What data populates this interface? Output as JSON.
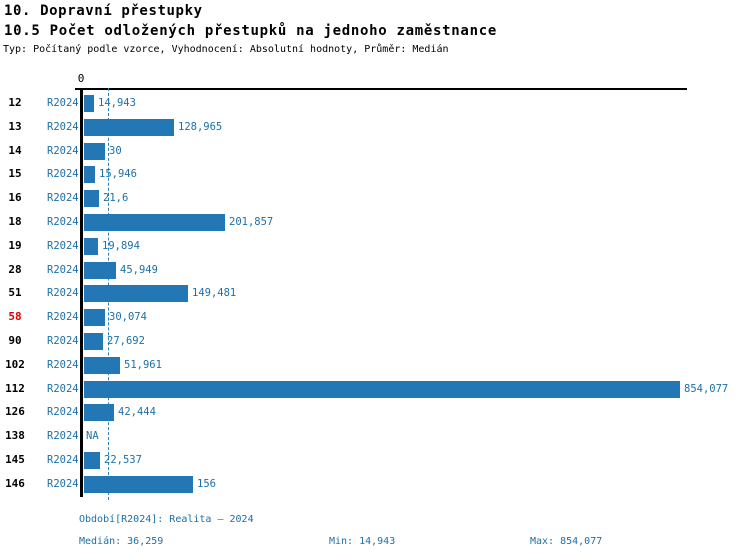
{
  "header": {
    "title_line1": "10. Dopravní přestupky",
    "title_line2": "10.5 Počet odložených přestupků na jednoho zaměstnance",
    "meta_line": "Typ: Počítaný podle vzorce, Vyhodnocení: Absolutní hodnoty, Průměr: Medián"
  },
  "axis": {
    "zero_label": "0"
  },
  "colors": {
    "bar": "#2277b4",
    "blue_text": "#1d6fa8",
    "highlight_red": "#e00000",
    "axis_black": "#000000",
    "median_line": "#2c7fb8"
  },
  "chart_data": {
    "type": "bar",
    "orientation": "horizontal",
    "title": "10.5 Počet odložených přestupků na jednoho zaměstnance",
    "categories": [
      "12",
      "13",
      "14",
      "15",
      "16",
      "18",
      "19",
      "28",
      "51",
      "58",
      "90",
      "102",
      "112",
      "126",
      "138",
      "145",
      "146"
    ],
    "period_label": "R2024",
    "series": [
      {
        "name": "R2024",
        "values": [
          14.943,
          128.965,
          30,
          15.946,
          21.6,
          201.857,
          19.894,
          45.949,
          149.481,
          30.074,
          27.692,
          51.961,
          854.077,
          42.444,
          null,
          22.537,
          156
        ]
      }
    ],
    "value_labels": [
      "14,943",
      "128,965",
      "30",
      "15,946",
      "21,6",
      "201,857",
      "19,894",
      "45,949",
      "149,481",
      "30,074",
      "27,692",
      "51,961",
      "854,077",
      "42,444",
      "NA",
      "22,537",
      "156"
    ],
    "highlighted_category": "58",
    "median": 36.259,
    "xlim": [
      0,
      854.077
    ],
    "grid": false,
    "median_line": "dashed-vertical"
  },
  "footer": {
    "period_line": "Období[R2024]: Realita – 2024",
    "median_label": "Medián: 36,259",
    "min_label": "Min: 14,943",
    "max_label": "Max: 854,077"
  }
}
